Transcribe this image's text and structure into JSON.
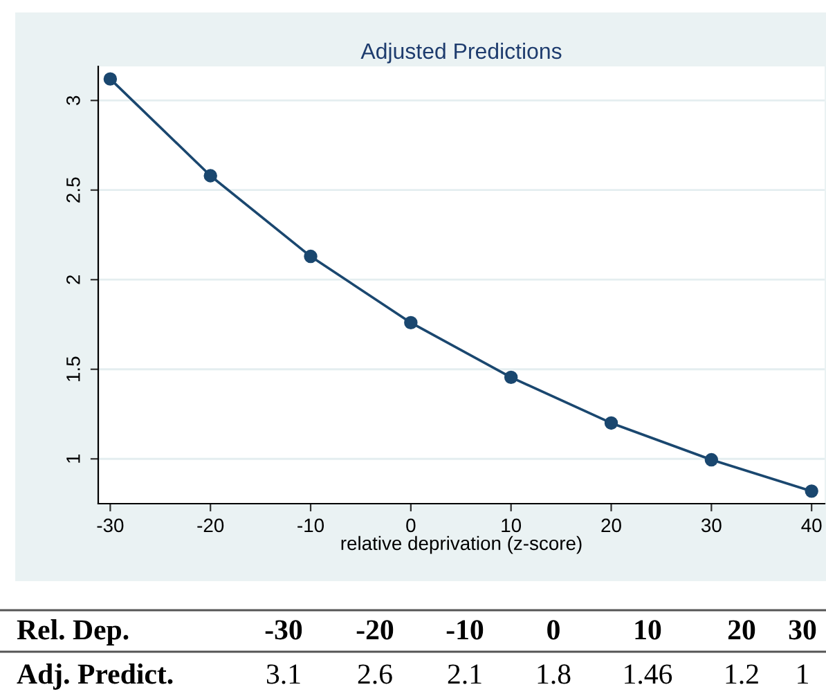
{
  "chart_data": {
    "type": "line",
    "title": "Adjusted Predictions",
    "xlabel": "relative deprivation (z-score)",
    "x": [
      -30,
      -20,
      -10,
      0,
      10,
      20,
      30,
      40
    ],
    "series": [
      {
        "color": "#1a476f",
        "values": [
          3.12,
          2.58,
          2.13,
          1.76,
          1.455,
          1.2,
          0.995,
          0.82
        ]
      }
    ],
    "xlim": [
      -31.2,
      41.3
    ],
    "xticks": [
      -30,
      -20,
      -10,
      0,
      10,
      20,
      30,
      40
    ],
    "ylim": [
      0.75,
      3.19
    ],
    "yticks": [
      1,
      1.5,
      2,
      2.5,
      3
    ],
    "grid": "y",
    "marker": "circle",
    "line_style": "solid",
    "legend": false,
    "annotations": [
      "Rel. Dep.",
      "-30",
      "-20",
      "-10",
      "0",
      "10",
      "20",
      "30",
      "Adj. Predict.",
      "3.1",
      "2.6",
      "2.1",
      "1.8",
      "1.46",
      "1.2",
      "1"
    ]
  }
}
